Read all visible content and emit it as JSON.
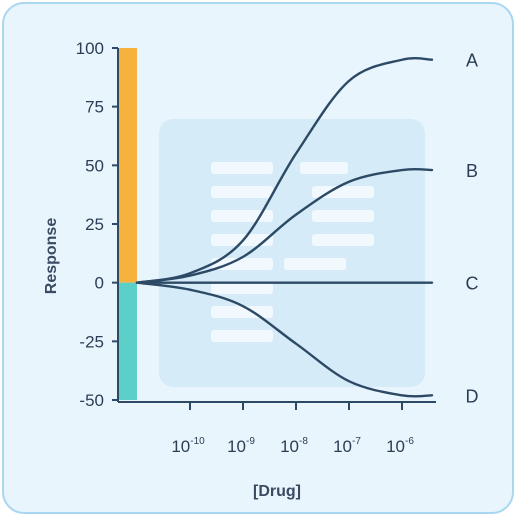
{
  "chart_data": {
    "type": "line",
    "xlabel": "[Drug]",
    "ylabel": "Response",
    "ylim": [
      -50,
      100
    ],
    "y_ticks": [
      "100",
      "75",
      "50",
      "25",
      "0",
      "-25",
      "-50"
    ],
    "x_ticks": [
      {
        "base": "10",
        "exp": "-10"
      },
      {
        "base": "10",
        "exp": "-9"
      },
      {
        "base": "10",
        "exp": "-8"
      },
      {
        "base": "10",
        "exp": "-7"
      },
      {
        "base": "10",
        "exp": "-6"
      }
    ],
    "bars": [
      {
        "from": 0,
        "to": 100,
        "color": "#f6b23d"
      },
      {
        "from": -50,
        "to": 0,
        "color": "#5ccfc9"
      }
    ],
    "series": [
      {
        "name": "A",
        "x": [
          1e-11,
          1e-10,
          1e-09,
          1e-08,
          1e-07,
          1e-06,
          1e-05
        ],
        "values": [
          0,
          4,
          18,
          55,
          86,
          95,
          95
        ]
      },
      {
        "name": "B",
        "x": [
          1e-11,
          1e-10,
          1e-09,
          1e-08,
          1e-07,
          1e-06,
          1e-05
        ],
        "values": [
          0,
          3,
          11,
          29,
          43,
          48,
          48
        ]
      },
      {
        "name": "C",
        "x": [
          1e-11,
          1e-10,
          1e-09,
          1e-08,
          1e-07,
          1e-06,
          1e-05
        ],
        "values": [
          0,
          0,
          0,
          0,
          0,
          0,
          0
        ]
      },
      {
        "name": "D",
        "x": [
          1e-11,
          1e-10,
          1e-09,
          1e-08,
          1e-07,
          1e-06,
          1e-05
        ],
        "values": [
          0,
          -3,
          -10,
          -26,
          -42,
          -48,
          -48
        ]
      }
    ],
    "line_color": "#2c4a66",
    "grid": false
  }
}
